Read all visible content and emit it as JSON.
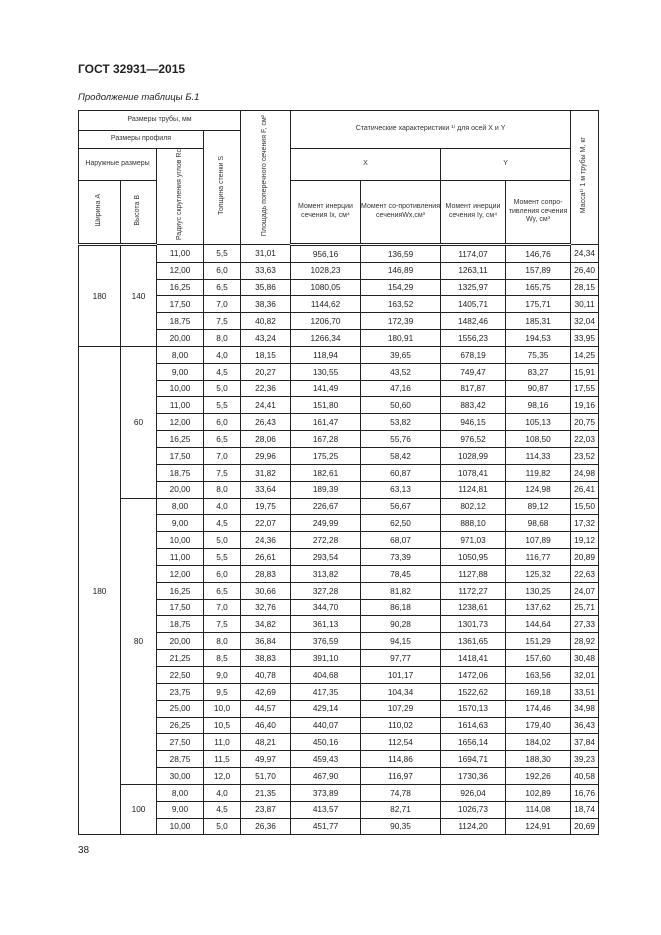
{
  "header": {
    "doc_code": "ГОСТ 32931—2015",
    "caption": "Продолжение таблицы Б.1",
    "page_number": "38"
  },
  "columns": {
    "pipe_sizes": "Размеры трубы, мм",
    "profile_sizes": "Размеры профиля",
    "outer_sizes": "Наружные размеры",
    "width_a": "Ширина A",
    "height_b": "Высота B",
    "radius": "Радиус скругления углов Rc",
    "thickness": "Толщина стенки S",
    "area": "Площадь поперечного сечения F, см²",
    "static": "Статические характеристики ¹⁾ для осей X и Y",
    "axis_x": "X",
    "axis_y": "Y",
    "ix": "Момент инерции сечения Ix, см⁴",
    "wx": "Момент со-противления сеченияWx,см³",
    "iy": "Момент инерции сечения Iy, см⁴",
    "wy": "Момент сопро-тивления сечения Wy, см³",
    "mass": "Масса¹⁾ 1 м трубы M, кг"
  },
  "groups": [
    {
      "a": "180",
      "subgroups": [
        {
          "b": "140",
          "rows": [
            [
              "11,00",
              "5,5",
              "31,01",
              "956,16",
              "136,59",
              "1174,07",
              "146,76",
              "24,34"
            ],
            [
              "12,00",
              "6,0",
              "33,63",
              "1028,23",
              "146,89",
              "1263,11",
              "157,89",
              "26,40"
            ],
            [
              "16,25",
              "6,5",
              "35,86",
              "1080,05",
              "154,29",
              "1325,97",
              "165,75",
              "28,15"
            ],
            [
              "17,50",
              "7,0",
              "38,36",
              "1144,62",
              "163,52",
              "1405,71",
              "175,71",
              "30,11"
            ],
            [
              "18,75",
              "7,5",
              "40,82",
              "1206,70",
              "172,39",
              "1482,46",
              "185,31",
              "32,04"
            ],
            [
              "20,00",
              "8,0",
              "43,24",
              "1266,34",
              "180,91",
              "1556,23",
              "194,53",
              "33,95"
            ]
          ]
        }
      ]
    },
    {
      "a": "180",
      "subgroups": [
        {
          "b": "60",
          "rows": [
            [
              "8,00",
              "4,0",
              "18,15",
              "118,94",
              "39,65",
              "678,19",
              "75,35",
              "14,25"
            ],
            [
              "9,00",
              "4,5",
              "20,27",
              "130,55",
              "43,52",
              "749,47",
              "83,27",
              "15,91"
            ],
            [
              "10,00",
              "5,0",
              "22,36",
              "141,49",
              "47,16",
              "817,87",
              "90,87",
              "17,55"
            ],
            [
              "11,00",
              "5,5",
              "24,41",
              "151,80",
              "50,60",
              "883,42",
              "98,16",
              "19,16"
            ],
            [
              "12,00",
              "6,0",
              "26,43",
              "161,47",
              "53,82",
              "946,15",
              "105,13",
              "20,75"
            ],
            [
              "16,25",
              "6,5",
              "28,06",
              "167,28",
              "55,76",
              "976,52",
              "108,50",
              "22,03"
            ],
            [
              "17,50",
              "7,0",
              "29,96",
              "175,25",
              "58,42",
              "1028,99",
              "114,33",
              "23,52"
            ],
            [
              "18,75",
              "7,5",
              "31,82",
              "182,61",
              "60,87",
              "1078,41",
              "119,82",
              "24,98"
            ],
            [
              "20,00",
              "8,0",
              "33,64",
              "189,39",
              "63,13",
              "1124,81",
              "124,98",
              "26,41"
            ]
          ]
        },
        {
          "b": "80",
          "rows": [
            [
              "8,00",
              "4,0",
              "19,75",
              "226,67",
              "56,67",
              "802,12",
              "89,12",
              "15,50"
            ],
            [
              "9,00",
              "4,5",
              "22,07",
              "249,99",
              "62,50",
              "888,10",
              "98,68",
              "17,32"
            ],
            [
              "10,00",
              "5,0",
              "24,36",
              "272,28",
              "68,07",
              "971,03",
              "107,89",
              "19,12"
            ],
            [
              "11,00",
              "5,5",
              "26,61",
              "293,54",
              "73,39",
              "1050,95",
              "116,77",
              "20,89"
            ],
            [
              "12,00",
              "6,0",
              "28,83",
              "313,82",
              "78,45",
              "1127,88",
              "125,32",
              "22,63"
            ],
            [
              "16,25",
              "6,5",
              "30,66",
              "327,28",
              "81,82",
              "1172,27",
              "130,25",
              "24,07"
            ],
            [
              "17,50",
              "7,0",
              "32,76",
              "344,70",
              "86,18",
              "1238,61",
              "137,62",
              "25,71"
            ],
            [
              "18,75",
              "7,5",
              "34,82",
              "361,13",
              "90,28",
              "1301,73",
              "144,64",
              "27,33"
            ],
            [
              "20,00",
              "8,0",
              "36,84",
              "376,59",
              "94,15",
              "1361,65",
              "151,29",
              "28,92"
            ],
            [
              "21,25",
              "8,5",
              "38,83",
              "391,10",
              "97,77",
              "1418,41",
              "157,60",
              "30,48"
            ],
            [
              "22,50",
              "9,0",
              "40,78",
              "404,68",
              "101,17",
              "1472,06",
              "163,56",
              "32,01"
            ],
            [
              "23,75",
              "9,5",
              "42,69",
              "417,35",
              "104,34",
              "1522,62",
              "169,18",
              "33,51"
            ],
            [
              "25,00",
              "10,0",
              "44,57",
              "429,14",
              "107,29",
              "1570,13",
              "174,46",
              "34,98"
            ],
            [
              "26,25",
              "10,5",
              "46,40",
              "440,07",
              "110,02",
              "1614,63",
              "179,40",
              "36,43"
            ],
            [
              "27,50",
              "11,0",
              "48,21",
              "450,16",
              "112,54",
              "1656,14",
              "184,02",
              "37,84"
            ],
            [
              "28,75",
              "11,5",
              "49,97",
              "459,43",
              "114,86",
              "1694,71",
              "188,30",
              "39,23"
            ],
            [
              "30,00",
              "12,0",
              "51,70",
              "467,90",
              "116,97",
              "1730,36",
              "192,26",
              "40,58"
            ]
          ]
        },
        {
          "b": "100",
          "rows": [
            [
              "8,00",
              "4,0",
              "21,35",
              "373,89",
              "74,78",
              "926,04",
              "102,89",
              "16,76"
            ],
            [
              "9,00",
              "4,5",
              "23,87",
              "413,57",
              "82,71",
              "1026,73",
              "114,08",
              "18,74"
            ],
            [
              "10,00",
              "5,0",
              "26,36",
              "451,77",
              "90,35",
              "1124,20",
              "124,91",
              "20,69"
            ]
          ]
        }
      ]
    }
  ]
}
